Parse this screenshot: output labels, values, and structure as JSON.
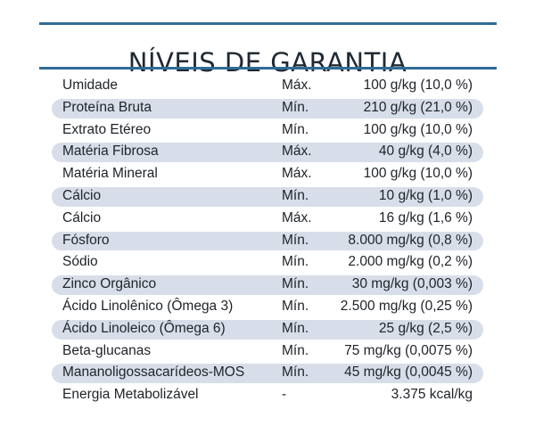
{
  "title": "NÍVEIS DE GARANTIA",
  "rows": [
    {
      "nutrient": "Umidade",
      "limit": "Máx.",
      "value": "100 g/kg (10,0 %)"
    },
    {
      "nutrient": "Proteína Bruta",
      "limit": "Mín.",
      "value": "210 g/kg (21,0 %)"
    },
    {
      "nutrient": "Extrato Etéreo",
      "limit": "Mín.",
      "value": "100 g/kg (10,0 %)"
    },
    {
      "nutrient": "Matéria Fibrosa",
      "limit": "Máx.",
      "value": "40 g/kg (4,0 %)"
    },
    {
      "nutrient": "Matéria Mineral",
      "limit": "Máx.",
      "value": "100 g/kg (10,0 %)"
    },
    {
      "nutrient": "Cálcio",
      "limit": "Mín.",
      "value": "10 g/kg (1,0 %)"
    },
    {
      "nutrient": "Cálcio",
      "limit": "Máx.",
      "value": "16 g/kg (1,6 %)"
    },
    {
      "nutrient": "Fósforo",
      "limit": "Mín.",
      "value": "8.000 mg/kg (0,8 %)"
    },
    {
      "nutrient": "Sódio",
      "limit": "Mín.",
      "value": "2.000 mg/kg (0,2 %)"
    },
    {
      "nutrient": "Zinco Orgânico",
      "limit": "Mín.",
      "value": "30 mg/kg (0,003 %)"
    },
    {
      "nutrient": "Ácido Linolênico (Ômega 3)",
      "limit": "Mín.",
      "value": "2.500 mg/kg (0,25 %)"
    },
    {
      "nutrient": "Ácido Linoleico (Ômega 6)",
      "limit": "Mín.",
      "value": "25 g/kg (2,5 %)"
    },
    {
      "nutrient": "Beta-glucanas",
      "limit": "Mín.",
      "value": "75 mg/kg (0,0075 %)"
    },
    {
      "nutrient": "Mananoligossacarídeos-MOS",
      "limit": "Mín.",
      "value": "45 mg/kg (0,0045 %)"
    },
    {
      "nutrient": "Energia Metabolizável",
      "limit": "-",
      "value": "3.375 kcal/kg"
    }
  ]
}
